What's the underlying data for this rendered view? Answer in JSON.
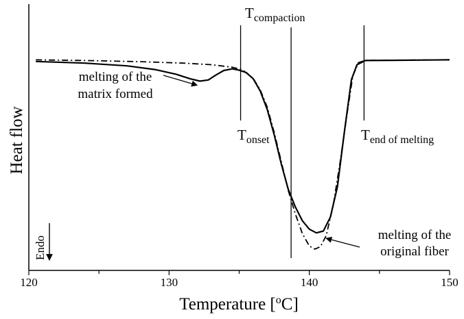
{
  "chart_data": {
    "type": "line",
    "xlabel": "Temperature [",
    "xlabel_sup": "o",
    "xlabel_unit": "C]",
    "ylabel": "Heat flow",
    "xlim": [
      120,
      150
    ],
    "ylim": [
      0,
      100
    ],
    "x_ticks": [
      120,
      130,
      140,
      150
    ],
    "x_tick_labels": [
      "120",
      "130",
      "140",
      "150"
    ],
    "x_minor_ticks": [
      125,
      135,
      145
    ],
    "y_ticks_shown": false,
    "grid": false,
    "series": [
      {
        "style": "solid",
        "points": [
          [
            120.5,
            90.3
          ],
          [
            124,
            89.6
          ],
          [
            127,
            88.4
          ],
          [
            129,
            86.8
          ],
          [
            130.5,
            84.8
          ],
          [
            131.5,
            82.8
          ],
          [
            132.2,
            81.8
          ],
          [
            132.8,
            82.3
          ],
          [
            133.3,
            84.3
          ],
          [
            133.9,
            86.4
          ],
          [
            134.5,
            87.1
          ],
          [
            135,
            86.5
          ],
          [
            135.5,
            85.5
          ],
          [
            136,
            82.8
          ],
          [
            136.5,
            77.5
          ],
          [
            137,
            69.5
          ],
          [
            137.5,
            58.5
          ],
          [
            138,
            46
          ],
          [
            138.5,
            35
          ],
          [
            139,
            27.5
          ],
          [
            139.5,
            21.5
          ],
          [
            140,
            17.8
          ],
          [
            140.5,
            16.2
          ],
          [
            141,
            17
          ],
          [
            141.5,
            23
          ],
          [
            142,
            36
          ],
          [
            142.5,
            60
          ],
          [
            143,
            82.5
          ],
          [
            143.4,
            88.9
          ],
          [
            144,
            90.7
          ],
          [
            146,
            90.8
          ],
          [
            150,
            91.0
          ]
        ]
      },
      {
        "style": "dash-dot",
        "points": [
          [
            120.5,
            91.0
          ],
          [
            124,
            90.7
          ],
          [
            128,
            90.2
          ],
          [
            131,
            89.6
          ],
          [
            133,
            88.9
          ],
          [
            134.5,
            87.8
          ],
          [
            135.2,
            86.8
          ],
          [
            136,
            83
          ],
          [
            136.5,
            78
          ],
          [
            137,
            70.5
          ],
          [
            137.5,
            59.5
          ],
          [
            138,
            47
          ],
          [
            138.5,
            34.5
          ],
          [
            139,
            24.5
          ],
          [
            139.5,
            16
          ],
          [
            140,
            10.5
          ],
          [
            140.4,
            9.2
          ],
          [
            140.8,
            10.3
          ],
          [
            141.2,
            15
          ],
          [
            141.7,
            28
          ],
          [
            142.2,
            47
          ],
          [
            142.7,
            68
          ],
          [
            143.1,
            84
          ],
          [
            143.5,
            89.8
          ],
          [
            144,
            90.8
          ],
          [
            150,
            91.0
          ]
        ]
      }
    ],
    "reference_lines": [
      {
        "x": 135.1,
        "label": "T",
        "sub": "onset"
      },
      {
        "x": 138.7,
        "label": "T",
        "sub": "compaction"
      },
      {
        "x": 143.9,
        "label": "T",
        "sub": "end of melting"
      }
    ],
    "annotations": [
      {
        "lines": [
          "melting of the",
          "matrix formed"
        ],
        "arrow_to": [
          132.2,
          81.8
        ]
      },
      {
        "lines": [
          "melting of the",
          "original fiber"
        ],
        "arrow_to": [
          140.9,
          11.5
        ]
      }
    ],
    "endo_label": "Endo"
  }
}
